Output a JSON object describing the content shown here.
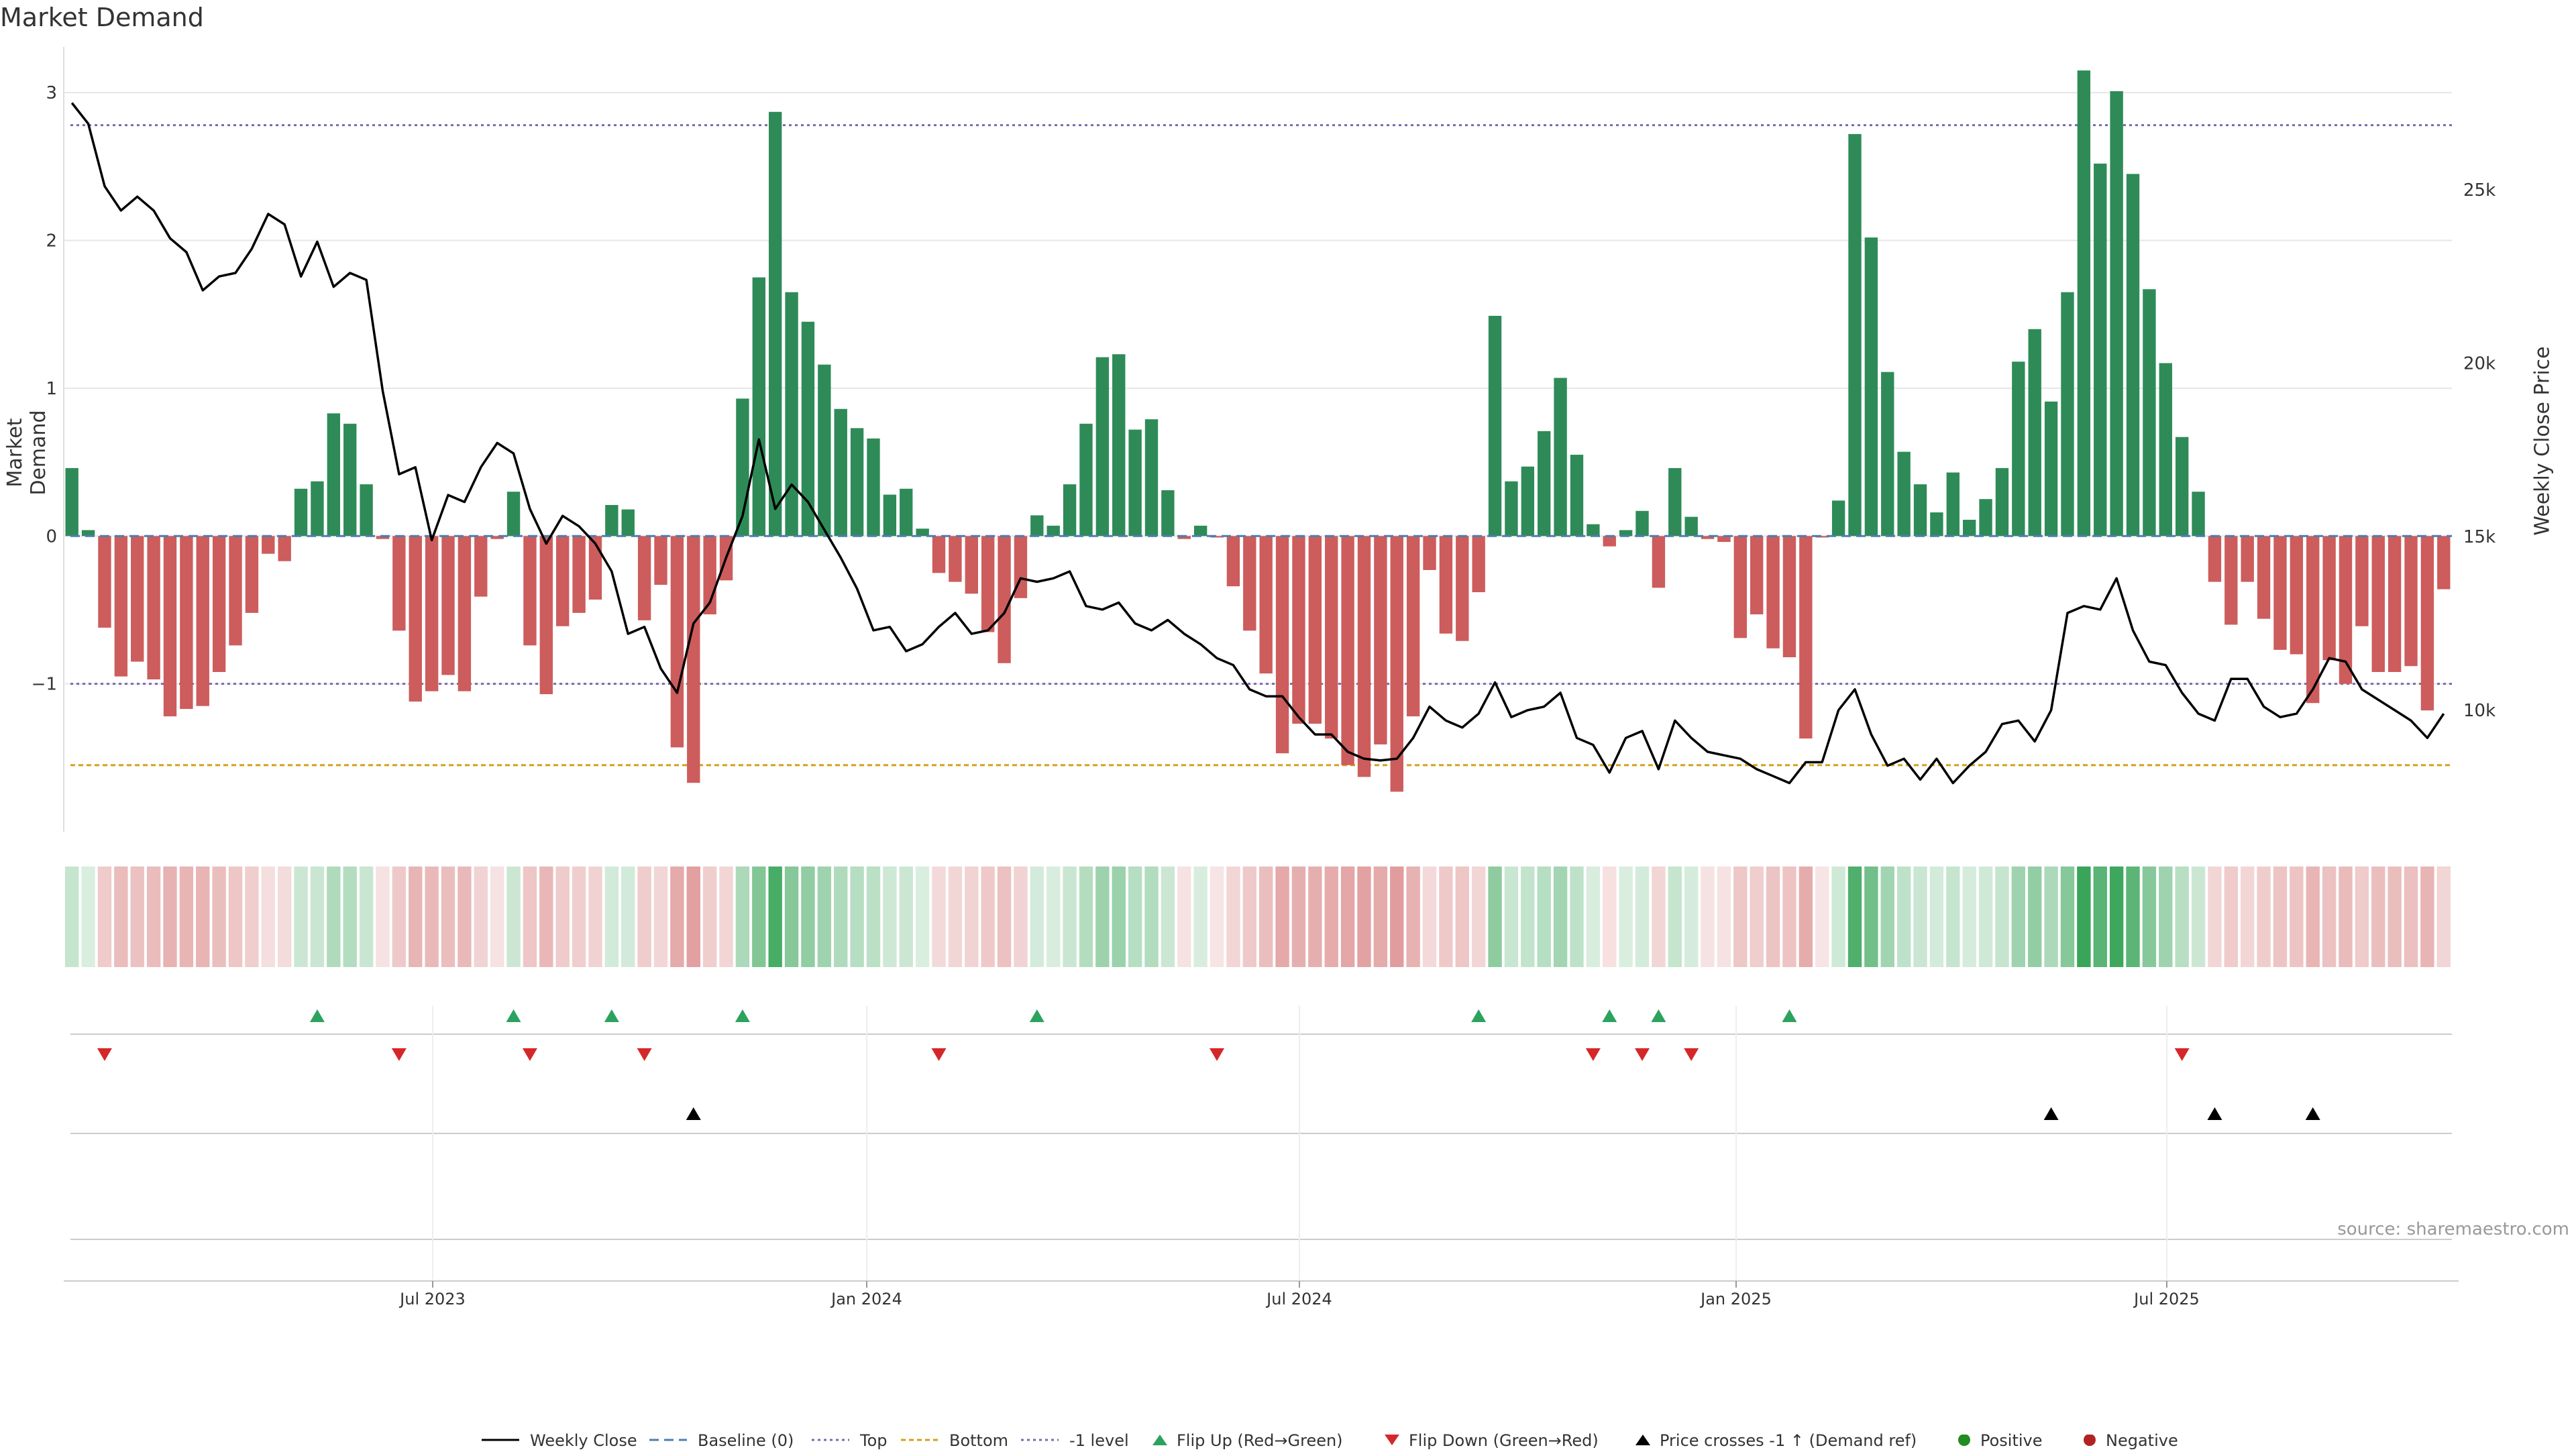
{
  "title": "Market Demand",
  "source_text": "source: sharemaestro.com",
  "colors": {
    "positive": "#2e8b57",
    "negative": "#cd5c5c",
    "price": "#000000",
    "top_line": "#7b68ae",
    "bottom_line": "#d4a017",
    "minus1_line": "#7b68ae",
    "flip_up": "#2ca25f",
    "flip_down": "#d62728",
    "cross": "#000000",
    "grid": "#e6e6e6"
  },
  "chart_data": {
    "type": "bar",
    "title": "Market Demand",
    "ylabel": "Market Demand",
    "y2label": "Weekly Close Price",
    "ylim": [
      -2.0,
      3.4
    ],
    "y_ticks": [
      "3",
      "2",
      "1",
      "0",
      "−1"
    ],
    "y2lim": [
      6500,
      29500
    ],
    "y2_ticks": [
      "25k",
      "20k",
      "15k",
      "10k"
    ],
    "x_ticks": [
      "Jul 2023",
      "Jan 2024",
      "Jul 2024",
      "Jan 2025",
      "Jul 2025"
    ],
    "levels": {
      "top": 2.78,
      "bottom": -1.55,
      "minus1": -1.0
    },
    "demand": [
      0.46,
      0.04,
      -0.62,
      -0.95,
      -0.85,
      -0.97,
      -1.22,
      -1.17,
      -1.15,
      -0.92,
      -0.74,
      -0.52,
      -0.12,
      -0.17,
      0.32,
      0.37,
      0.83,
      0.76,
      0.35,
      -0.02,
      -0.64,
      -1.12,
      -1.05,
      -0.94,
      -1.05,
      -0.41,
      -0.02,
      0.3,
      -0.74,
      -1.07,
      -0.61,
      -0.52,
      -0.43,
      0.21,
      0.18,
      -0.57,
      -0.33,
      -1.43,
      -1.67,
      -0.53,
      -0.3,
      0.93,
      1.75,
      2.87,
      1.65,
      1.45,
      1.16,
      0.86,
      0.73,
      0.66,
      0.28,
      0.32,
      0.05,
      -0.25,
      -0.31,
      -0.39,
      -0.65,
      -0.86,
      -0.42,
      0.14,
      0.07,
      0.35,
      0.76,
      1.21,
      1.23,
      0.72,
      0.79,
      0.31,
      -0.02,
      0.07,
      -0.01,
      -0.34,
      -0.64,
      -0.93,
      -1.47,
      -1.27,
      -1.27,
      -1.37,
      -1.55,
      -1.63,
      -1.41,
      -1.73,
      -1.22,
      -0.23,
      -0.66,
      -0.71,
      -0.38,
      1.49,
      0.37,
      0.47,
      0.71,
      1.07,
      0.55,
      0.08,
      -0.07,
      0.04,
      0.17,
      -0.35,
      0.46,
      0.13,
      -0.02,
      -0.04,
      -0.69,
      -0.53,
      -0.76,
      -0.82,
      -1.37,
      -0.01,
      0.24,
      2.72,
      2.02,
      1.11,
      0.57,
      0.35,
      0.16,
      0.43,
      0.11,
      0.25,
      0.46,
      1.18,
      1.4,
      0.91,
      1.65,
      3.15,
      2.52,
      3.01,
      2.45,
      1.67,
      1.17,
      0.67,
      0.3,
      -0.31,
      -0.6,
      -0.31,
      -0.56,
      -0.77,
      -0.8,
      -1.13,
      -0.84,
      -1.0,
      -0.61,
      -0.92,
      -0.92,
      -0.88,
      -1.18,
      -0.36
    ],
    "weekly_close": [
      27500,
      26900,
      25100,
      24400,
      24800,
      24400,
      23600,
      23200,
      22100,
      22500,
      22600,
      23300,
      24300,
      24000,
      22500,
      23500,
      22200,
      22600,
      22400,
      19200,
      16800,
      17000,
      14900,
      16200,
      16000,
      17000,
      17700,
      17400,
      15800,
      14800,
      15600,
      15300,
      14800,
      14000,
      12200,
      12400,
      11200,
      10500,
      12500,
      13100,
      14400,
      15600,
      17800,
      15800,
      16500,
      16000,
      15200,
      14400,
      13500,
      12300,
      12400,
      11700,
      11900,
      12400,
      12800,
      12200,
      12300,
      12800,
      13800,
      13700,
      13800,
      14000,
      13000,
      12900,
      13100,
      12500,
      12300,
      12600,
      12200,
      11900,
      11500,
      11300,
      10600,
      10400,
      10400,
      9800,
      9300,
      9300,
      8800,
      8600,
      8550,
      8600,
      9200,
      10100,
      9700,
      9500,
      9900,
      10800,
      9800,
      10000,
      10100,
      10500,
      9200,
      9000,
      8200,
      9200,
      9400,
      8300,
      9700,
      9200,
      8800,
      8700,
      8600,
      8300,
      8100,
      7900,
      8500,
      8500,
      10000,
      10600,
      9300,
      8400,
      8600,
      8000,
      8600,
      7900,
      8400,
      8800,
      9600,
      9700,
      9100,
      10000,
      12800,
      13000,
      12900,
      13800,
      12300,
      11400,
      11300,
      10500,
      9900,
      9700,
      10900,
      10900,
      10100,
      9800,
      9900,
      10600,
      11500,
      11400,
      10600,
      10300,
      10000,
      9700,
      9200,
      9900
    ],
    "flip_up": [
      15,
      27,
      33,
      41,
      59,
      86,
      94,
      97,
      105
    ],
    "flip_down": [
      2,
      20,
      28,
      35,
      53,
      70,
      93,
      96,
      99,
      129
    ],
    "price_cross_minus1_up": [
      38,
      121,
      131,
      137
    ],
    "heat_strip": "demand-intensity",
    "legend": [
      "Weekly Close",
      "Baseline (0)",
      "Top",
      "Bottom",
      "-1 level",
      "Flip Up (Red→Green)",
      "Flip Down (Green→Red)",
      "Price crosses -1 ↑ (Demand ref)",
      "Positive",
      "Negative"
    ]
  }
}
